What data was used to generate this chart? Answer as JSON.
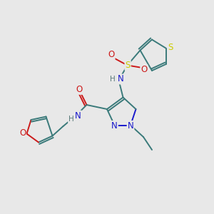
{
  "background_color": "#e8e8e8",
  "bond_color": "#3a7a7a",
  "atom_colors": {
    "N": "#1a1acc",
    "O": "#cc1a1a",
    "S": "#cccc00",
    "H": "#5a7a7a",
    "C": "#3a7a7a"
  }
}
